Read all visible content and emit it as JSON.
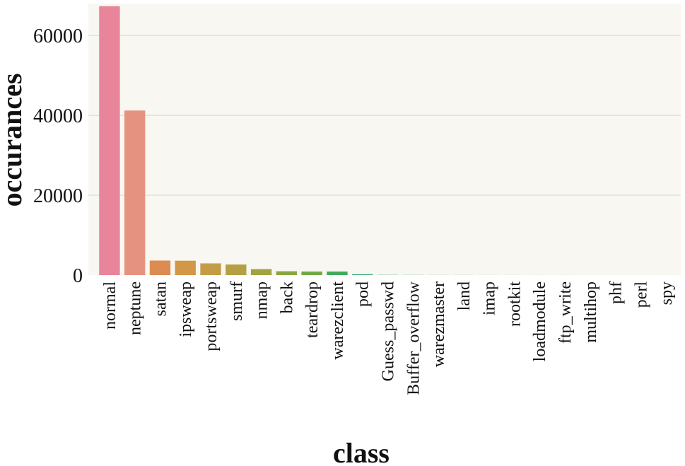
{
  "chart_data": {
    "type": "bar",
    "title": "",
    "xlabel": "class",
    "ylabel": "occurances",
    "ylim": [
      0,
      68000
    ],
    "yticks": [
      0,
      20000,
      40000,
      60000
    ],
    "grid": true,
    "categories": [
      "normal",
      "neptune",
      "satan",
      "ipsweap",
      "portsweap",
      "smurf",
      "nmap",
      "back",
      "teardrop",
      "warezclient",
      "pod",
      "Guess_passwd",
      "Buffer_overflow",
      "warezmaster",
      "land",
      "imap",
      "rootkit",
      "loadmodule",
      "ftp_write",
      "multihop",
      "phf",
      "perl",
      "spy"
    ],
    "values": [
      67343,
      41214,
      3633,
      3599,
      2931,
      2646,
      1493,
      956,
      892,
      890,
      201,
      53,
      30,
      20,
      18,
      11,
      10,
      9,
      8,
      7,
      4,
      3,
      2
    ],
    "colors": [
      "#e8859a",
      "#e59380",
      "#dc8c52",
      "#d39748",
      "#c59c46",
      "#b4a043",
      "#a0a440",
      "#8aa73f",
      "#6faa45",
      "#3fac5a",
      "#31aa7c",
      "#34a88e",
      "#36a79c",
      "#37a6a8",
      "#39a4b4",
      "#3aa1c4",
      "#4a9bd6",
      "#6f92e2",
      "#9889e6",
      "#b67ee6",
      "#cf77d8",
      "#df74c3",
      "#e676ae"
    ]
  }
}
